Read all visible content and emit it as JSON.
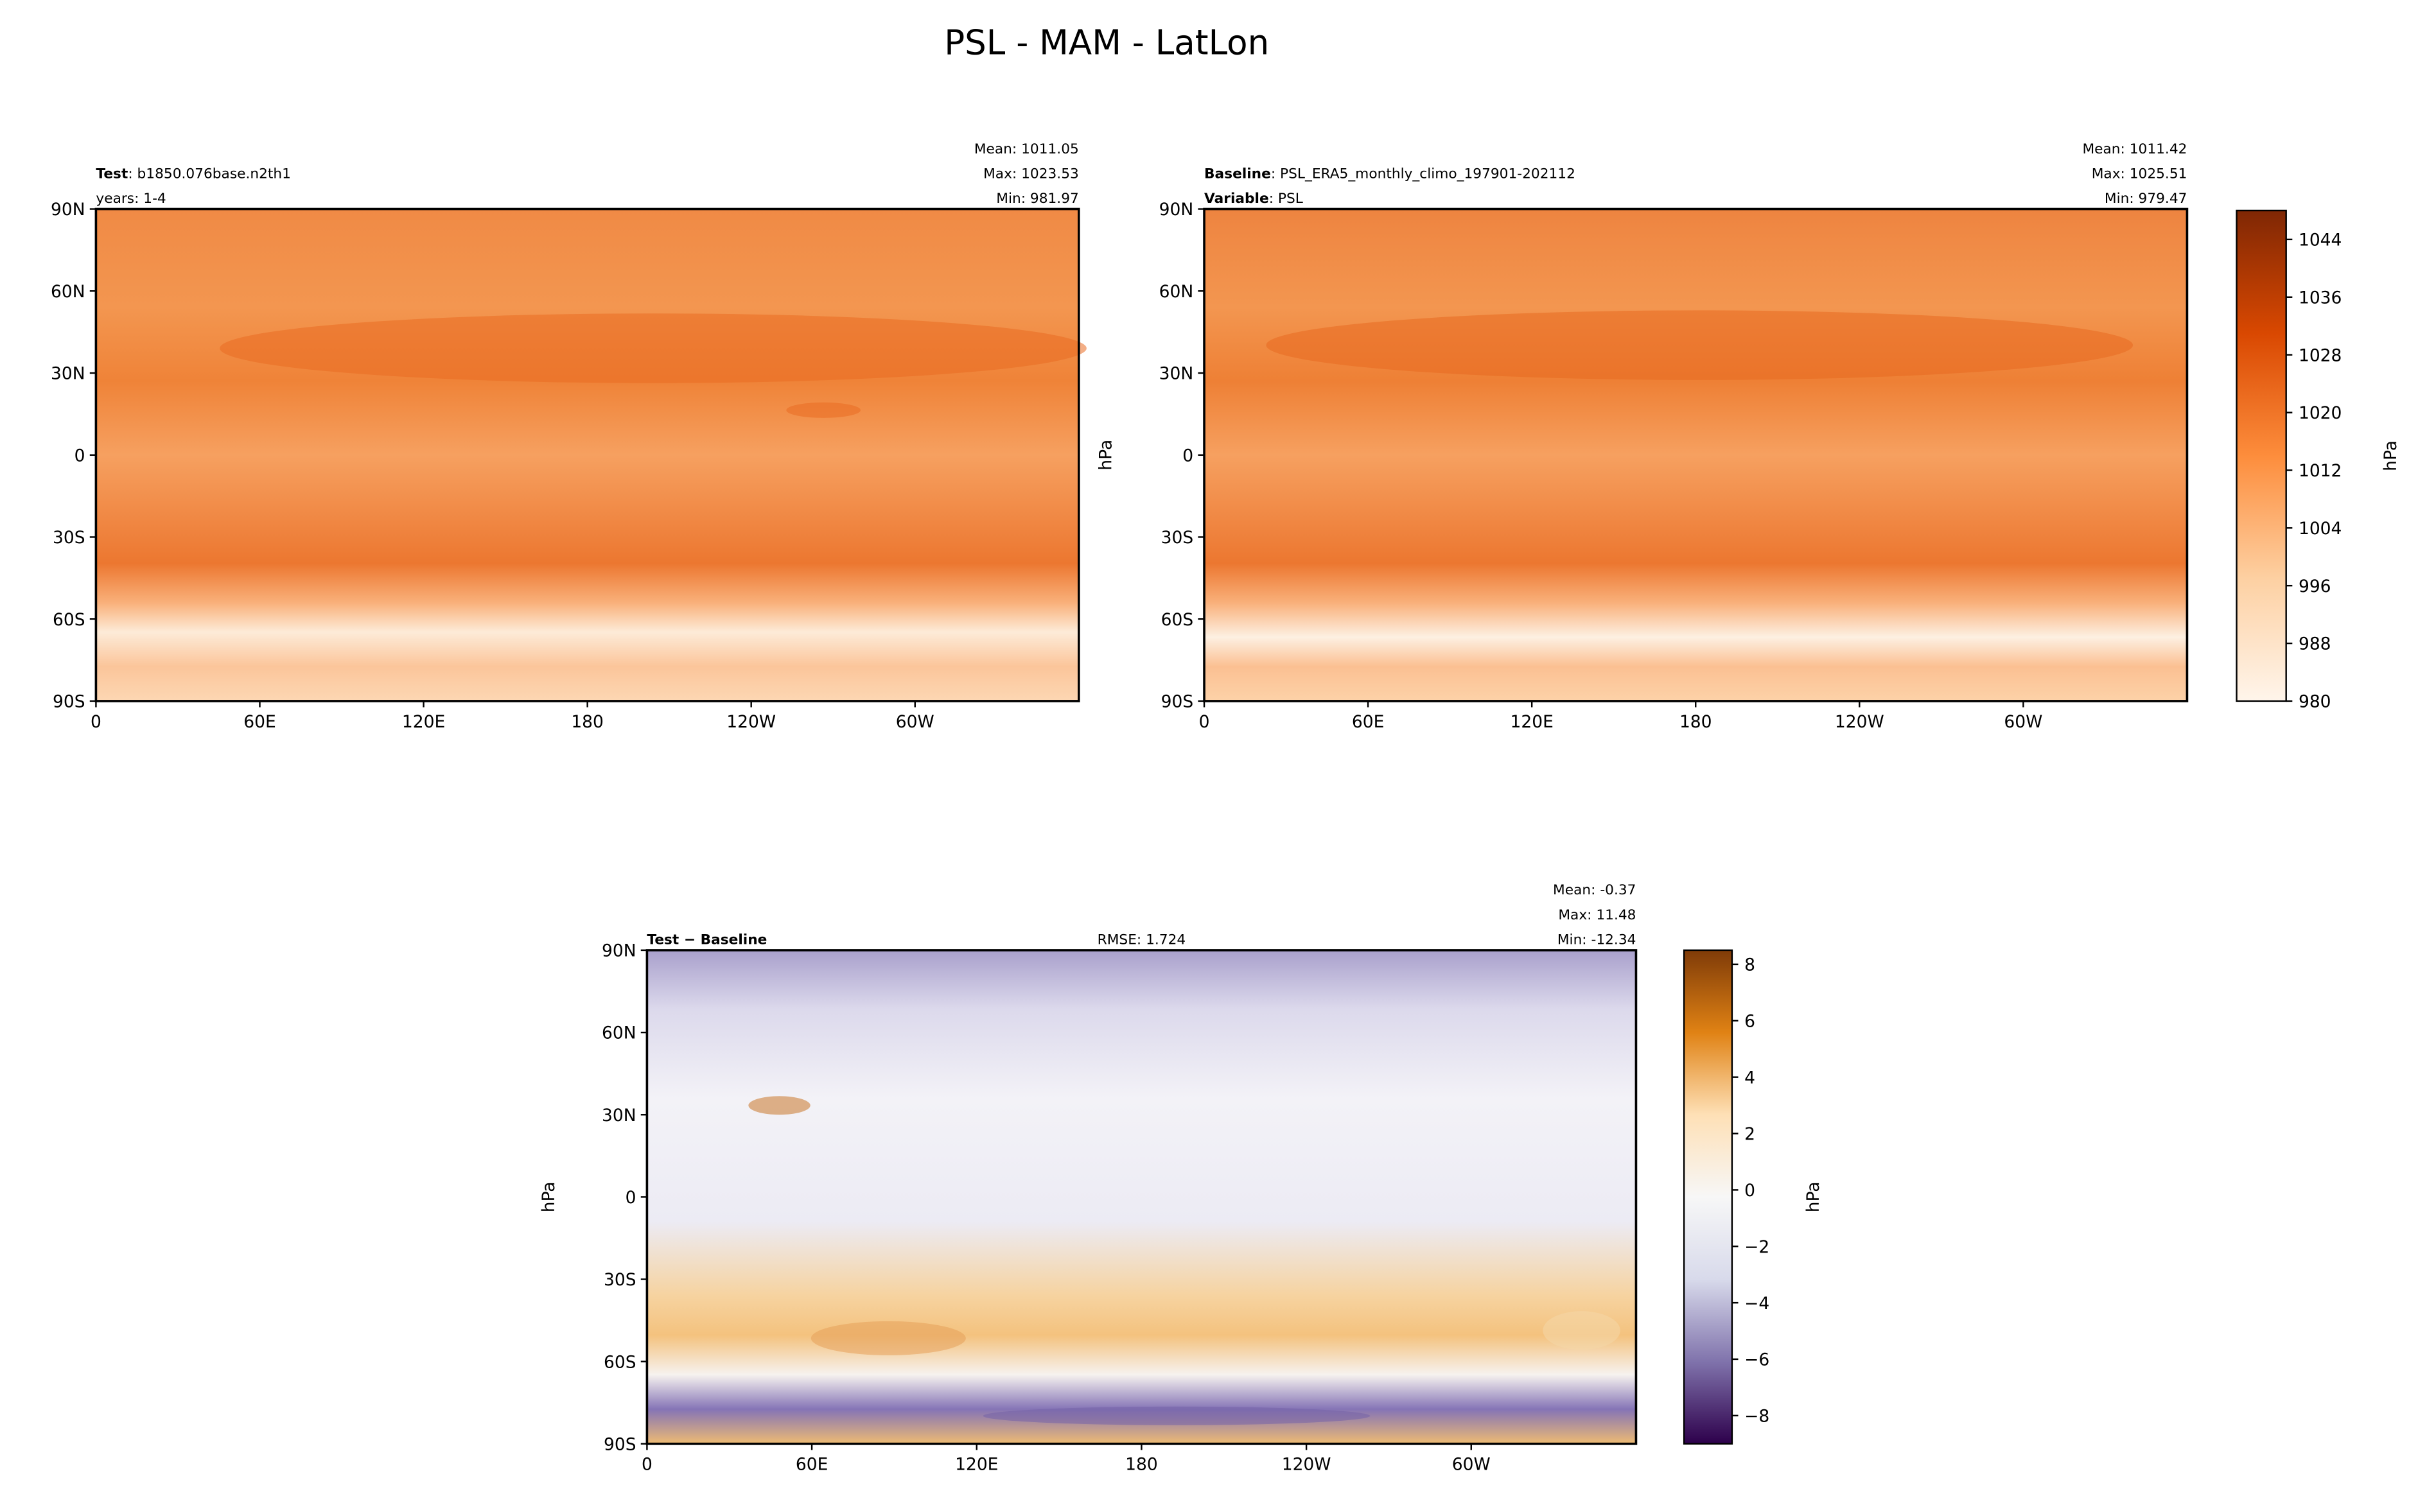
{
  "title": "PSL - MAM - LatLon",
  "chart_data": [
    {
      "type": "map",
      "left_text": [
        {
          "bold": "Test",
          "text": ": b1850.076base.n2th1"
        },
        {
          "text": "years: 1-4"
        }
      ],
      "right_text": [
        "Mean: 1011.05",
        "Max: 1023.53",
        "Min: 981.97"
      ],
      "xlim": [
        0,
        360
      ],
      "ylim": [
        -90,
        90
      ],
      "xticks": [
        0,
        {
          "value": 60,
          "label": "60E"
        },
        {
          "value": 120,
          "label": "120E"
        },
        180,
        {
          "value": 240,
          "label": "120W"
        },
        {
          "value": 300,
          "label": "60W"
        }
      ],
      "yticks": [
        {
          "value": -90,
          "label": "90S"
        },
        {
          "value": -60,
          "label": "60S"
        },
        {
          "value": -30,
          "label": "30S"
        },
        0,
        {
          "value": 30,
          "label": "30N"
        },
        {
          "value": 60,
          "label": "60N"
        },
        {
          "value": 90,
          "label": "90N"
        }
      ]
    },
    {
      "type": "map",
      "left_text": [
        {
          "bold": "Baseline",
          "text": ": PSL_ERA5_monthly_climo_197901-202112"
        },
        {
          "bold": "Variable",
          "text": ": PSL"
        }
      ],
      "right_text": [
        "Mean: 1011.42",
        "Max: 1025.51",
        "Min: 979.47"
      ],
      "ylabel": "hPa",
      "xlim": [
        0,
        360
      ],
      "ylim": [
        -90,
        90
      ],
      "xticks": [
        0,
        {
          "value": 60,
          "label": "60E"
        },
        {
          "value": 120,
          "label": "120E"
        },
        180,
        {
          "value": 240,
          "label": "120W"
        },
        {
          "value": 300,
          "label": "60W"
        }
      ],
      "yticks": [
        {
          "value": -90,
          "label": "90S"
        },
        {
          "value": -60,
          "label": "60S"
        },
        {
          "value": -30,
          "label": "30S"
        },
        0,
        {
          "value": 30,
          "label": "30N"
        },
        {
          "value": 60,
          "label": "60N"
        },
        {
          "value": 90,
          "label": "90N"
        }
      ],
      "colorbar": {
        "label": "hPa",
        "lim": [
          980,
          1048
        ],
        "ticks": [
          980,
          988,
          996,
          1004,
          1012,
          1020,
          1028,
          1036,
          1044
        ],
        "colors": [
          "#fff5eb",
          "#fdd0a2",
          "#fd8d3c",
          "#d94801",
          "#7f2704"
        ]
      }
    },
    {
      "type": "map",
      "left_text": [
        {
          "bold": "Test − Baseline"
        }
      ],
      "center_text": "RMSE: 1.724",
      "right_text": [
        "Mean: -0.37",
        "Max: 11.48",
        "Min: -12.34"
      ],
      "ylabel": "hPa",
      "xlim": [
        0,
        360
      ],
      "ylim": [
        -90,
        90
      ],
      "xticks": [
        0,
        {
          "value": 60,
          "label": "60E"
        },
        {
          "value": 120,
          "label": "120E"
        },
        180,
        {
          "value": 240,
          "label": "120W"
        },
        {
          "value": 300,
          "label": "60W"
        }
      ],
      "yticks": [
        {
          "value": -90,
          "label": "90S"
        },
        {
          "value": -60,
          "label": "60S"
        },
        {
          "value": -30,
          "label": "30S"
        },
        0,
        {
          "value": 30,
          "label": "30N"
        },
        {
          "value": 60,
          "label": "60N"
        },
        {
          "value": 90,
          "label": "90N"
        }
      ],
      "colorbar": {
        "label": "hPa",
        "lim": [
          -9,
          8.5
        ],
        "ticks": [
          {
            "value": -8,
            "label": "−8"
          },
          {
            "value": -6,
            "label": "−6"
          },
          {
            "value": -4,
            "label": "−4"
          },
          {
            "value": -2,
            "label": "−2"
          },
          0,
          2,
          4,
          6,
          8
        ],
        "colors": [
          "#2d004b",
          "#8073ac",
          "#d8daeb",
          "#f7f7f7",
          "#fee0b6",
          "#e08214",
          "#7f3b08"
        ]
      }
    }
  ]
}
